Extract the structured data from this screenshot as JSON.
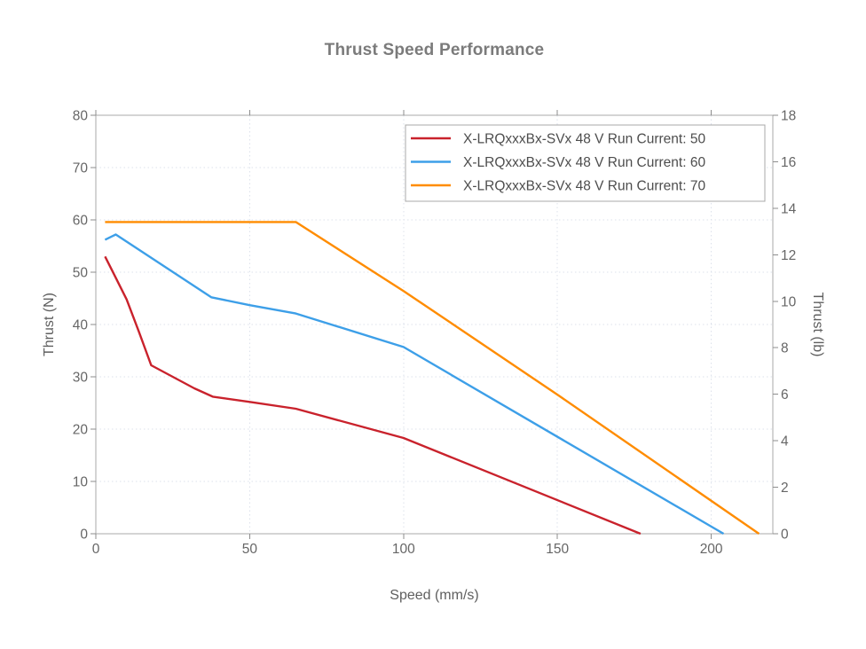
{
  "chart_data": {
    "type": "line",
    "title": "Thrust Speed Performance",
    "xlabel": "Speed (mm/s)",
    "ylabel_left": "Thrust (N)",
    "ylabel_right": "Thrust (lb)",
    "xlim": [
      0,
      220
    ],
    "ylim_left": [
      0,
      80
    ],
    "ylim_right": [
      0,
      18
    ],
    "xticks": [
      0,
      50,
      100,
      150,
      200
    ],
    "yticks_left": [
      0,
      10,
      20,
      30,
      40,
      50,
      60,
      70,
      80
    ],
    "yticks_right": [
      0,
      2,
      4,
      6,
      8,
      10,
      12,
      14,
      16,
      18
    ],
    "grid": true,
    "legend_position": "top-right",
    "series": [
      {
        "name": "X-LRQxxxBx-SVx 48 V Run Current: 50",
        "color": "#C9222C",
        "points": [
          [
            3,
            53
          ],
          [
            6,
            49.5
          ],
          [
            10,
            44.8
          ],
          [
            14,
            38.6
          ],
          [
            18,
            32.2
          ],
          [
            32,
            27.8
          ],
          [
            38,
            26.2
          ],
          [
            50,
            25.2
          ],
          [
            65,
            23.9
          ],
          [
            100,
            18.3
          ],
          [
            177,
            0
          ]
        ]
      },
      {
        "name": "X-LRQxxxBx-SVx 48 V Run Current: 60",
        "color": "#3D9FE8",
        "points": [
          [
            3,
            56.2
          ],
          [
            6.5,
            57.2
          ],
          [
            37.5,
            45.2
          ],
          [
            50,
            43.7
          ],
          [
            65,
            42.1
          ],
          [
            100,
            35.7
          ],
          [
            204,
            0
          ]
        ]
      },
      {
        "name": "X-LRQxxxBx-SVx 48 V Run Current: 70",
        "color": "#FF8C00",
        "points": [
          [
            3,
            59.6
          ],
          [
            65,
            59.6
          ],
          [
            100,
            46.4
          ],
          [
            150,
            26.6
          ],
          [
            215.5,
            0
          ]
        ]
      }
    ]
  },
  "style": {
    "title_color": "#7B7B7B",
    "axis_label_color": "#5F5F5F",
    "tick_label_color": "#666666",
    "legend_text_color": "#4D4D4D",
    "border_color": "#A8A8A8",
    "tick_color": "#8C8C8C",
    "grid_color": "#DCE1EB",
    "background": "#FFFFFF"
  }
}
